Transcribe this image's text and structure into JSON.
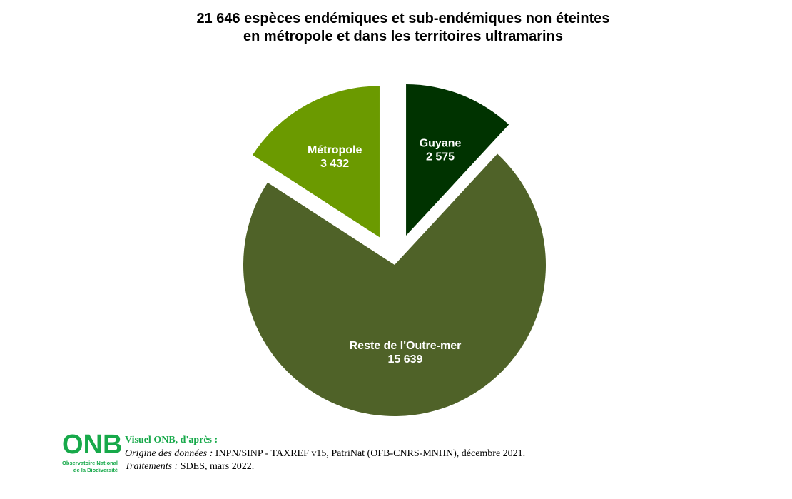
{
  "title_lines": [
    "21 646 espèces endémiques et sub-endémiques non éteintes",
    "en métropole et dans les territoires ultramarins"
  ],
  "chart_data": {
    "type": "pie",
    "title": "21 646 espèces endémiques et sub-endémiques non éteintes en métropole et dans les territoires ultramarins",
    "total": 21646,
    "exploded": [
      "Guyane",
      "Métropole"
    ],
    "slices": [
      {
        "label": "Guyane",
        "value_label": "2 575",
        "value": 2575,
        "color": "#003300"
      },
      {
        "label": "Reste de l'Outre-mer",
        "value_label": "15 639",
        "value": 15639,
        "color": "#4f6228"
      },
      {
        "label": "Métropole",
        "value_label": "3 432",
        "value": 3432,
        "color": "#6b9a00"
      }
    ]
  },
  "footer": {
    "logo_letters": "ONB",
    "logo_sub_line1": "Observatoire National",
    "logo_sub_line2": "de la Biodiversité",
    "lead": "Visuel ONB, d'après :",
    "origin_label": "Origine des données :",
    "origin_text": " INPN/SINP - TAXREF v15, PatriNat (OFB-CNRS-MNHN), décembre 2021.",
    "treatment_label": "Traitements :",
    "treatment_text": " SDES, mars 2022."
  }
}
